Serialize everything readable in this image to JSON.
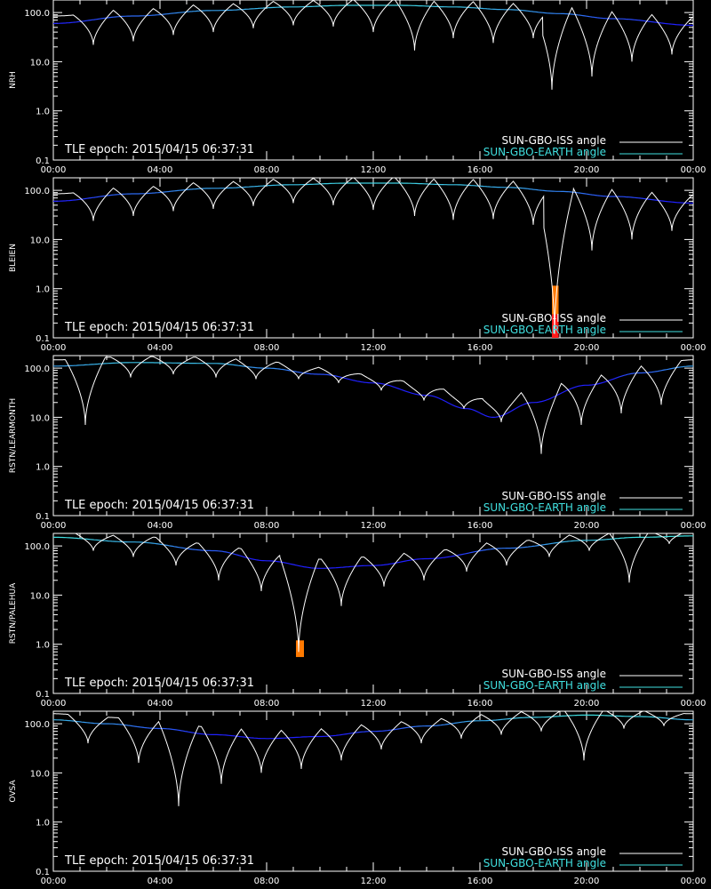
{
  "figure": {
    "epoch_label": "TLE epoch: 2015/04/15 06:37:31",
    "colors": {
      "background": "#000000",
      "axes": "#ffffff",
      "iss": "#ffffff",
      "earth_line": "#2020ff",
      "earth_fade": "#40e0e0",
      "event": "#ff7a00",
      "event_red": "#ff1a1a"
    }
  },
  "chart_data": [
    {
      "type": "line",
      "ylabel": "NRH",
      "yscale": "log",
      "ylim": [
        0.1,
        180
      ],
      "xlim": [
        0,
        24
      ],
      "x_ticks": [
        "00:00",
        "04:00",
        "08:00",
        "12:00",
        "16:00",
        "20:00",
        "00:00"
      ],
      "y_ticks": [
        "0.1",
        "1.0",
        "10.0",
        "100.0"
      ],
      "legend": [
        "SUN-GBO-ISS angle",
        "SUN-GBO-EARTH angle"
      ],
      "legend_position": "bottom-right",
      "earth_angle": {
        "t": [
          0,
          3,
          6,
          9,
          11,
          13,
          15,
          17,
          19,
          21,
          24
        ],
        "deg": [
          60,
          85,
          110,
          130,
          140,
          140,
          130,
          115,
          95,
          75,
          55
        ]
      },
      "iss_dips": [
        {
          "t": 1.5,
          "min": 22
        },
        {
          "t": 3.0,
          "min": 26
        },
        {
          "t": 4.5,
          "min": 35
        },
        {
          "t": 6.0,
          "min": 40
        },
        {
          "t": 7.5,
          "min": 48
        },
        {
          "t": 9.0,
          "min": 55
        },
        {
          "t": 10.5,
          "min": 52
        },
        {
          "t": 12.0,
          "min": 40
        },
        {
          "t": 13.55,
          "min": 17
        },
        {
          "t": 15.0,
          "min": 30
        },
        {
          "t": 16.5,
          "min": 24
        },
        {
          "t": 18.0,
          "min": 30
        },
        {
          "t": 18.7,
          "min": 2.7
        },
        {
          "t": 20.2,
          "min": 5
        },
        {
          "t": 21.7,
          "min": 10
        },
        {
          "t": 23.2,
          "min": 14
        }
      ],
      "events": []
    },
    {
      "type": "line",
      "ylabel": "BLEIEN",
      "yscale": "log",
      "ylim": [
        0.1,
        180
      ],
      "xlim": [
        0,
        24
      ],
      "x_ticks": [
        "00:00",
        "04:00",
        "08:00",
        "12:00",
        "16:00",
        "20:00",
        "00:00"
      ],
      "y_ticks": [
        "0.1",
        "1.0",
        "10.0",
        "100.0"
      ],
      "legend": [
        "SUN-GBO-ISS angle",
        "SUN-GBO-EARTH angle"
      ],
      "legend_position": "bottom-right",
      "earth_angle": {
        "t": [
          0,
          3,
          6,
          9,
          11,
          13,
          15,
          17,
          19,
          21,
          24
        ],
        "deg": [
          60,
          85,
          110,
          130,
          140,
          140,
          130,
          115,
          95,
          75,
          55
        ]
      },
      "iss_dips": [
        {
          "t": 1.5,
          "min": 24
        },
        {
          "t": 3.0,
          "min": 30
        },
        {
          "t": 4.5,
          "min": 38
        },
        {
          "t": 6.0,
          "min": 42
        },
        {
          "t": 7.5,
          "min": 48
        },
        {
          "t": 9.0,
          "min": 55
        },
        {
          "t": 10.5,
          "min": 50
        },
        {
          "t": 12.0,
          "min": 40
        },
        {
          "t": 13.55,
          "min": 30
        },
        {
          "t": 15.0,
          "min": 25
        },
        {
          "t": 16.5,
          "min": 26
        },
        {
          "t": 18.0,
          "min": 20
        },
        {
          "t": 18.8,
          "min": 0.12
        },
        {
          "t": 20.2,
          "min": 6
        },
        {
          "t": 21.7,
          "min": 10
        },
        {
          "t": 23.2,
          "min": 15
        }
      ],
      "events": [
        {
          "t0": 18.7,
          "t1": 18.95,
          "ylo": 0.1,
          "yhi": 1.15
        }
      ]
    },
    {
      "type": "line",
      "ylabel": "RSTN/LEARMONTH",
      "yscale": "log",
      "ylim": [
        0.1,
        180
      ],
      "xlim": [
        0,
        24
      ],
      "x_ticks": [
        "00:00",
        "04:00",
        "08:00",
        "12:00",
        "16:00",
        "20:00",
        "00:00"
      ],
      "y_ticks": [
        "0.1",
        "1.0",
        "10.0",
        "100.0"
      ],
      "legend": [
        "SUN-GBO-ISS angle",
        "SUN-GBO-EARTH angle"
      ],
      "legend_position": "bottom-right",
      "earth_angle": {
        "t": [
          0,
          3,
          6,
          8,
          10,
          12,
          14,
          15.5,
          16.5,
          18,
          20,
          22,
          24
        ],
        "deg": [
          110,
          130,
          125,
          100,
          75,
          50,
          28,
          15,
          10,
          20,
          45,
          80,
          110
        ]
      },
      "iss_dips": [
        {
          "t": 1.2,
          "min": 7
        },
        {
          "t": 2.9,
          "min": 65
        },
        {
          "t": 4.5,
          "min": 75
        },
        {
          "t": 6.1,
          "min": 65
        },
        {
          "t": 7.6,
          "min": 60
        },
        {
          "t": 9.2,
          "min": 60
        },
        {
          "t": 10.7,
          "min": 50
        },
        {
          "t": 12.3,
          "min": 35
        },
        {
          "t": 13.9,
          "min": 22
        },
        {
          "t": 15.4,
          "min": 15
        },
        {
          "t": 16.8,
          "min": 8
        },
        {
          "t": 18.3,
          "min": 1.8
        },
        {
          "t": 19.8,
          "min": 7
        },
        {
          "t": 21.3,
          "min": 12
        },
        {
          "t": 22.8,
          "min": 18
        }
      ],
      "events": []
    },
    {
      "type": "line",
      "ylabel": "RSTN/PALEHUA",
      "yscale": "log",
      "ylim": [
        0.1,
        180
      ],
      "xlim": [
        0,
        24
      ],
      "x_ticks": [
        "00:00",
        "04:00",
        "08:00",
        "12:00",
        "16:00",
        "20:00",
        "00:00"
      ],
      "y_ticks": [
        "0.1",
        "1.0",
        "10.0",
        "100.0"
      ],
      "legend": [
        "SUN-GBO-ISS angle",
        "SUN-GBO-EARTH angle"
      ],
      "legend_position": "bottom-right",
      "earth_angle": {
        "t": [
          0,
          3,
          6,
          8,
          10,
          12,
          14,
          17,
          20,
          22,
          24
        ],
        "deg": [
          150,
          120,
          80,
          50,
          35,
          40,
          55,
          90,
          130,
          150,
          160
        ]
      },
      "iss_dips": [
        {
          "t": 1.5,
          "min": 80
        },
        {
          "t": 3.0,
          "min": 60
        },
        {
          "t": 4.6,
          "min": 40
        },
        {
          "t": 6.2,
          "min": 20
        },
        {
          "t": 7.8,
          "min": 12
        },
        {
          "t": 9.2,
          "min": 0.7
        },
        {
          "t": 10.8,
          "min": 6
        },
        {
          "t": 12.4,
          "min": 15
        },
        {
          "t": 13.9,
          "min": 20
        },
        {
          "t": 15.5,
          "min": 30
        },
        {
          "t": 17.0,
          "min": 40
        },
        {
          "t": 18.6,
          "min": 60
        },
        {
          "t": 20.1,
          "min": 80
        },
        {
          "t": 21.6,
          "min": 18
        },
        {
          "t": 23.1,
          "min": 110
        }
      ],
      "events": [
        {
          "t0": 9.1,
          "t1": 9.4,
          "ylo": 0.55,
          "yhi": 1.2
        }
      ]
    },
    {
      "type": "line",
      "ylabel": "OVSA",
      "yscale": "log",
      "ylim": [
        0.1,
        180
      ],
      "xlim": [
        0,
        24
      ],
      "x_ticks": [
        "00:00",
        "04:00",
        "08:00",
        "12:00",
        "16:00",
        "20:00",
        "00:00"
      ],
      "y_ticks": [
        "0.1",
        "1.0",
        "10.0",
        "100.0"
      ],
      "legend": [
        "SUN-GBO-ISS angle",
        "SUN-GBO-EARTH angle"
      ],
      "legend_position": "bottom-right",
      "earth_angle": {
        "t": [
          0,
          2,
          4,
          6,
          8,
          10,
          12,
          14,
          16,
          18,
          20,
          22,
          24
        ],
        "deg": [
          120,
          100,
          80,
          60,
          50,
          55,
          70,
          90,
          115,
          135,
          150,
          140,
          120
        ]
      },
      "iss_dips": [
        {
          "t": 1.3,
          "min": 40
        },
        {
          "t": 3.2,
          "min": 16
        },
        {
          "t": 4.7,
          "min": 2.1
        },
        {
          "t": 6.3,
          "min": 6
        },
        {
          "t": 7.8,
          "min": 10
        },
        {
          "t": 9.3,
          "min": 12
        },
        {
          "t": 10.8,
          "min": 18
        },
        {
          "t": 12.3,
          "min": 30
        },
        {
          "t": 13.8,
          "min": 40
        },
        {
          "t": 15.3,
          "min": 50
        },
        {
          "t": 16.8,
          "min": 60
        },
        {
          "t": 18.3,
          "min": 70
        },
        {
          "t": 19.9,
          "min": 18
        },
        {
          "t": 21.4,
          "min": 80
        },
        {
          "t": 22.9,
          "min": 90
        }
      ],
      "events": []
    }
  ]
}
